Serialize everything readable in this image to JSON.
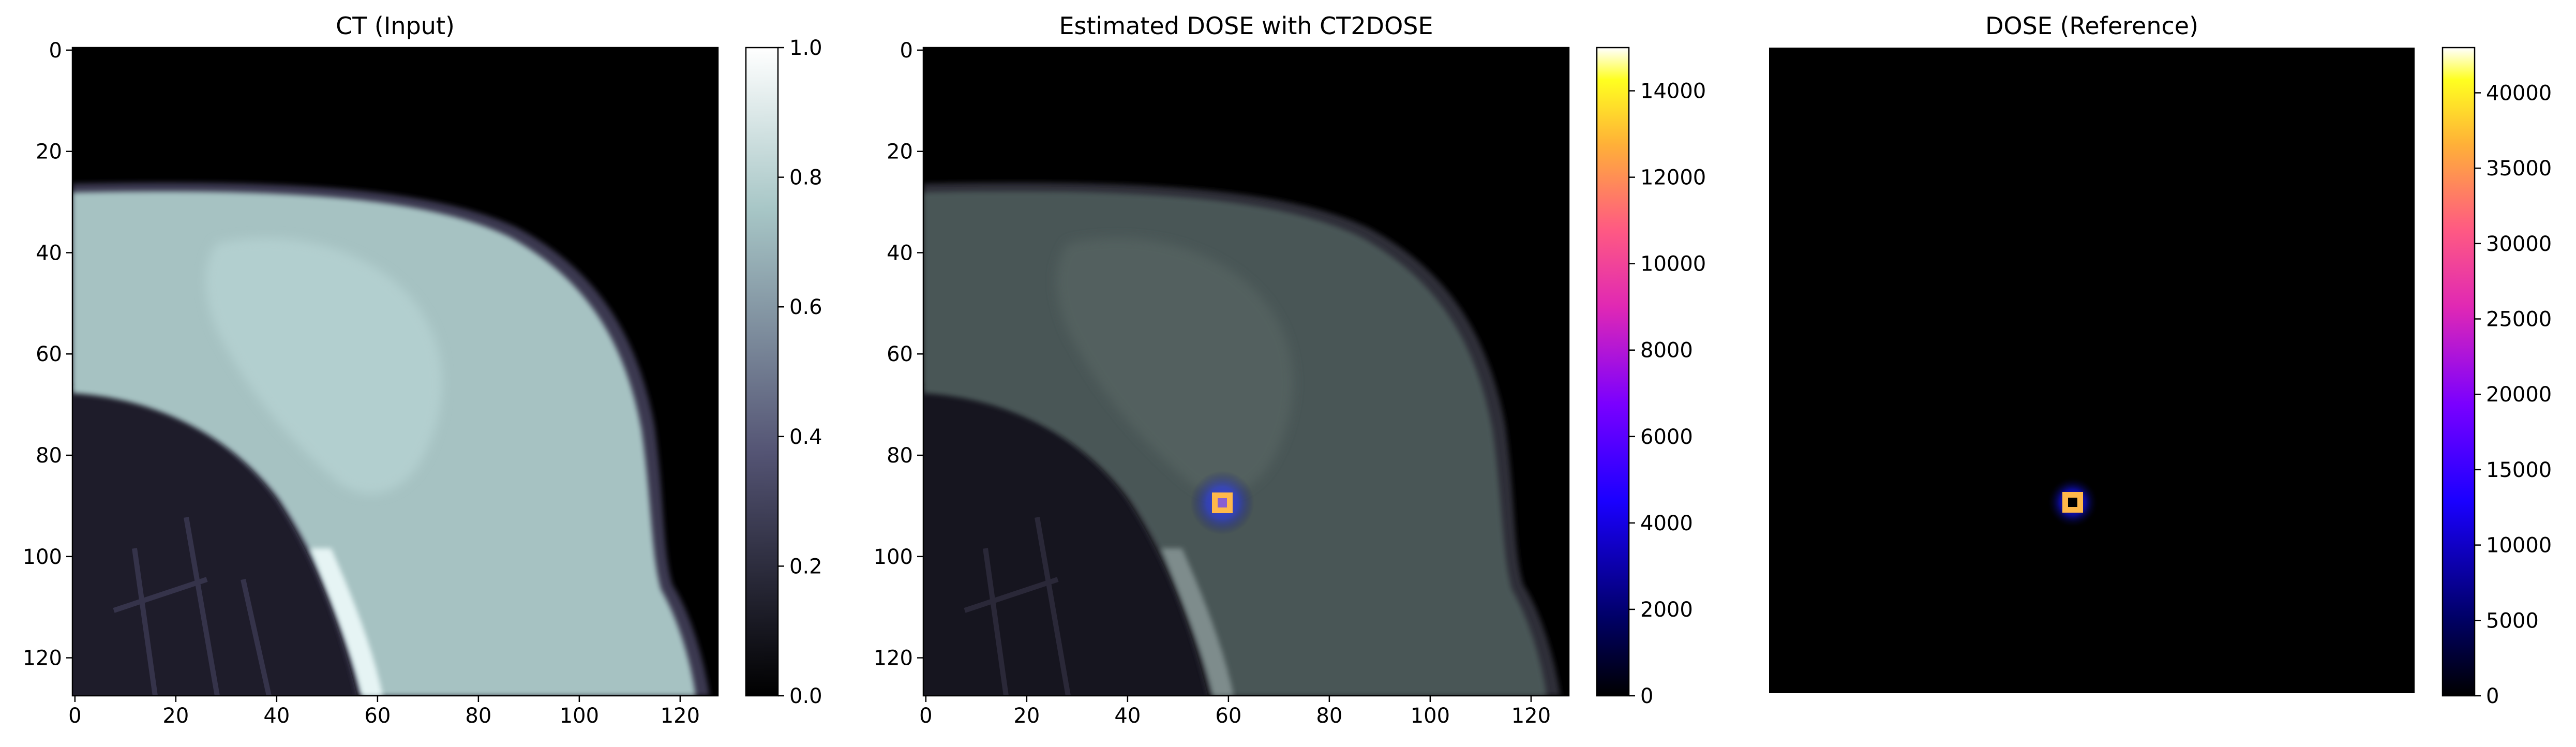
{
  "chart_data": [
    {
      "type": "heatmap",
      "title": "CT (Input)",
      "xlabel": "",
      "ylabel": "",
      "x_ticks": [
        "0",
        "20",
        "40",
        "60",
        "80",
        "100",
        "120"
      ],
      "y_ticks": [
        "0",
        "20",
        "40",
        "60",
        "80",
        "100",
        "120"
      ],
      "xlim": [
        0,
        127
      ],
      "ylim": [
        127,
        0
      ],
      "image": "ct_slice",
      "colormap": "bone",
      "colorbar": {
        "range": [
          0.0,
          1.0
        ],
        "ticks": [
          "0.0",
          "0.2",
          "0.4",
          "0.6",
          "0.8",
          "1.0"
        ]
      }
    },
    {
      "type": "heatmap",
      "title": "Estimated DOSE with CT2DOSE",
      "xlabel": "",
      "ylabel": "",
      "x_ticks": [
        "0",
        "20",
        "40",
        "60",
        "80",
        "100",
        "120"
      ],
      "y_ticks": [
        "0",
        "20",
        "40",
        "60",
        "80",
        "100",
        "120"
      ],
      "xlim": [
        0,
        127
      ],
      "ylim": [
        127,
        0
      ],
      "image": "ct_slice_with_dose_overlay",
      "colormap": "gnuplot2",
      "hotspot": {
        "x": 59,
        "y": 89,
        "peak": 14800
      },
      "colorbar": {
        "range": [
          0,
          15000
        ],
        "ticks": [
          "0",
          "2000",
          "4000",
          "6000",
          "8000",
          "10000",
          "12000",
          "14000"
        ]
      }
    },
    {
      "type": "heatmap",
      "title": "DOSE (Reference)",
      "xlabel": "",
      "ylabel": "",
      "axes_visible": false,
      "image": "dose_map",
      "colormap": "gnuplot2",
      "hotspot": {
        "x": 59,
        "y": 89,
        "peak": 43000
      },
      "colorbar": {
        "range": [
          0,
          43000
        ],
        "ticks": [
          "0",
          "5000",
          "10000",
          "15000",
          "20000",
          "25000",
          "30000",
          "35000",
          "40000"
        ]
      }
    }
  ]
}
